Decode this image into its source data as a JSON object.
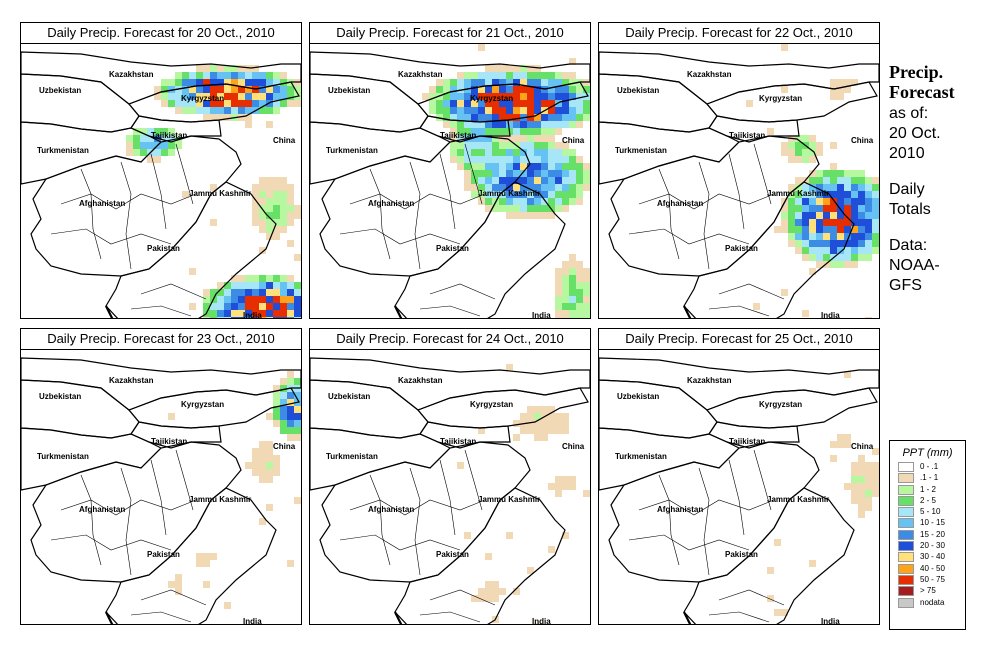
{
  "panels": [
    {
      "title": "Daily Precip. Forecast for  20 Oct., 2010",
      "day": 20
    },
    {
      "title": "Daily Precip. Forecast for  21 Oct., 2010",
      "day": 21
    },
    {
      "title": "Daily Precip. Forecast for  22 Oct., 2010",
      "day": 22
    },
    {
      "title": "Daily Precip. Forecast for  23 Oct., 2010",
      "day": 23
    },
    {
      "title": "Daily Precip. Forecast for  24 Oct., 2010",
      "day": 24
    },
    {
      "title": "Daily Precip. Forecast for  25 Oct., 2010",
      "day": 25
    }
  ],
  "map_labels": {
    "kazakhstan": "Kazakhstan",
    "uzbekistan": "Uzbekistan",
    "kyrgyzstan": "Kyrgyzstan",
    "tajikistan": "Tajikistan",
    "turkmenistan": "Turkmenistan",
    "china": "China",
    "afghanistan": "Afghanistan",
    "jammu_kashmir": "Jammu Kashmir",
    "pakistan": "Pakistan",
    "india": "India"
  },
  "side": {
    "title_line1": "Precip.",
    "title_line2": "Forecast",
    "asof_line1": "as of:",
    "asof_line2": "20 Oct.",
    "asof_line3": "2010",
    "daily_line1": "Daily",
    "daily_line2": "Totals",
    "data_line1": "Data:",
    "data_line2": "NOAA-",
    "data_line3": "GFS"
  },
  "legend": {
    "title": "PPT (mm)",
    "items": [
      {
        "label": "0 - .1",
        "color": "#ffffff"
      },
      {
        "label": ".1 - 1",
        "color": "#f2d9b5"
      },
      {
        "label": "1 - 2",
        "color": "#b7f7a0"
      },
      {
        "label": "2 - 5",
        "color": "#66e066"
      },
      {
        "label": "5 - 10",
        "color": "#a6e6f7"
      },
      {
        "label": "10 - 15",
        "color": "#66c2f2"
      },
      {
        "label": "15 - 20",
        "color": "#3c8ce6"
      },
      {
        "label": "20 - 30",
        "color": "#1f4fd9"
      },
      {
        "label": "30 - 40",
        "color": "#ffe07a"
      },
      {
        "label": "40 - 50",
        "color": "#ffa31a"
      },
      {
        "label": "50 - 75",
        "color": "#e62e00"
      },
      {
        "label": "> 75",
        "color": "#a61c1c"
      },
      {
        "label": "nodata",
        "color": "#c8c8c8"
      }
    ]
  }
}
